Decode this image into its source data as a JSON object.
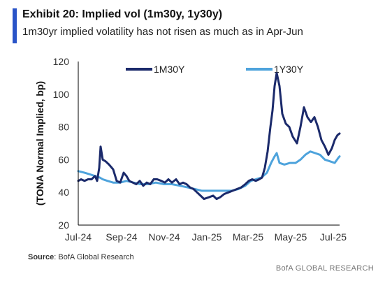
{
  "colors": {
    "accent": "#2a54c8",
    "series_1m30y": "#1b2a6b",
    "series_1y30y": "#4ea3dc",
    "axis": "#000000"
  },
  "header": {
    "title": "Exhibit 20: Implied vol (1m30y, 1y30y)",
    "subtitle": "1m30yr implied volatility has not risen as much as in Apr-Jun"
  },
  "source": {
    "label": "Source",
    "text": ": BofA Global Research"
  },
  "footer": {
    "brand": "BofA GLOBAL RESEARCH"
  },
  "chart_data": {
    "type": "line",
    "title": "Exhibit 20: Implied vol (1m30y, 1y30y)",
    "ylabel": "(TONA Normal Implied, bp)",
    "xlabel": "",
    "ylim": [
      20,
      120
    ],
    "yticks": [
      20,
      40,
      60,
      80,
      100,
      120
    ],
    "xlim": [
      "2024-07-01",
      "2025-07-10"
    ],
    "xticks": [
      {
        "date": "2024-07-01",
        "label": "Jul-24"
      },
      {
        "date": "2024-09-01",
        "label": "Sep-24"
      },
      {
        "date": "2024-11-01",
        "label": "Nov-24"
      },
      {
        "date": "2025-01-01",
        "label": "Jan-25"
      },
      {
        "date": "2025-03-01",
        "label": "Mar-25"
      },
      {
        "date": "2025-05-01",
        "label": "May-25"
      },
      {
        "date": "2025-07-01",
        "label": "Jul-25"
      }
    ],
    "legend_position": "top",
    "grid": false,
    "series": [
      {
        "name": "1M30Y",
        "points": [
          [
            "2024-07-01",
            47
          ],
          [
            "2024-07-05",
            48
          ],
          [
            "2024-07-10",
            47
          ],
          [
            "2024-07-15",
            48
          ],
          [
            "2024-07-20",
            48
          ],
          [
            "2024-07-25",
            50
          ],
          [
            "2024-07-28",
            47
          ],
          [
            "2024-07-31",
            55
          ],
          [
            "2024-08-02",
            68
          ],
          [
            "2024-08-05",
            60
          ],
          [
            "2024-08-09",
            59
          ],
          [
            "2024-08-14",
            57
          ],
          [
            "2024-08-20",
            54
          ],
          [
            "2024-08-25",
            47
          ],
          [
            "2024-08-30",
            46
          ],
          [
            "2024-09-04",
            52
          ],
          [
            "2024-09-08",
            50
          ],
          [
            "2024-09-12",
            47
          ],
          [
            "2024-09-17",
            46
          ],
          [
            "2024-09-22",
            45
          ],
          [
            "2024-09-27",
            47
          ],
          [
            "2024-10-02",
            44
          ],
          [
            "2024-10-07",
            46
          ],
          [
            "2024-10-12",
            45
          ],
          [
            "2024-10-17",
            48
          ],
          [
            "2024-10-22",
            48
          ],
          [
            "2024-10-28",
            47
          ],
          [
            "2024-11-02",
            46
          ],
          [
            "2024-11-07",
            48
          ],
          [
            "2024-11-12",
            46
          ],
          [
            "2024-11-18",
            48
          ],
          [
            "2024-11-23",
            45
          ],
          [
            "2024-11-28",
            46
          ],
          [
            "2024-12-03",
            45
          ],
          [
            "2024-12-08",
            43
          ],
          [
            "2024-12-13",
            42
          ],
          [
            "2024-12-18",
            40
          ],
          [
            "2024-12-23",
            38
          ],
          [
            "2024-12-28",
            36
          ],
          [
            "2025-01-04",
            37
          ],
          [
            "2025-01-10",
            38
          ],
          [
            "2025-01-15",
            36
          ],
          [
            "2025-01-20",
            37
          ],
          [
            "2025-01-26",
            39
          ],
          [
            "2025-02-01",
            40
          ],
          [
            "2025-02-07",
            41
          ],
          [
            "2025-02-13",
            42
          ],
          [
            "2025-02-19",
            43
          ],
          [
            "2025-02-25",
            45
          ],
          [
            "2025-03-02",
            47
          ],
          [
            "2025-03-07",
            48
          ],
          [
            "2025-03-12",
            47
          ],
          [
            "2025-03-17",
            48
          ],
          [
            "2025-03-21",
            49
          ],
          [
            "2025-03-25",
            55
          ],
          [
            "2025-03-29",
            65
          ],
          [
            "2025-04-02",
            80
          ],
          [
            "2025-04-05",
            90
          ],
          [
            "2025-04-08",
            105
          ],
          [
            "2025-04-11",
            113
          ],
          [
            "2025-04-15",
            105
          ],
          [
            "2025-04-19",
            88
          ],
          [
            "2025-04-24",
            82
          ],
          [
            "2025-04-29",
            80
          ],
          [
            "2025-05-04",
            74
          ],
          [
            "2025-05-10",
            70
          ],
          [
            "2025-05-15",
            80
          ],
          [
            "2025-05-20",
            92
          ],
          [
            "2025-05-25",
            86
          ],
          [
            "2025-05-30",
            83
          ],
          [
            "2025-06-04",
            86
          ],
          [
            "2025-06-09",
            80
          ],
          [
            "2025-06-14",
            72
          ],
          [
            "2025-06-19",
            68
          ],
          [
            "2025-06-24",
            63
          ],
          [
            "2025-06-29",
            67
          ],
          [
            "2025-07-03",
            72
          ],
          [
            "2025-07-07",
            75
          ],
          [
            "2025-07-10",
            76
          ]
        ]
      },
      {
        "name": "1Y30Y",
        "points": [
          [
            "2024-07-01",
            53
          ],
          [
            "2024-07-10",
            52
          ],
          [
            "2024-07-18",
            51
          ],
          [
            "2024-07-25",
            50
          ],
          [
            "2024-08-01",
            49
          ],
          [
            "2024-08-05",
            48
          ],
          [
            "2024-08-12",
            47
          ],
          [
            "2024-08-20",
            46
          ],
          [
            "2024-08-30",
            46
          ],
          [
            "2024-09-08",
            47
          ],
          [
            "2024-09-18",
            46
          ],
          [
            "2024-09-28",
            45
          ],
          [
            "2024-10-08",
            45
          ],
          [
            "2024-10-20",
            46
          ],
          [
            "2024-11-01",
            45
          ],
          [
            "2024-11-12",
            45
          ],
          [
            "2024-11-24",
            44
          ],
          [
            "2024-12-05",
            43
          ],
          [
            "2024-12-15",
            42
          ],
          [
            "2024-12-25",
            41
          ],
          [
            "2025-01-05",
            41
          ],
          [
            "2025-01-15",
            41
          ],
          [
            "2025-01-25",
            41
          ],
          [
            "2025-02-05",
            41
          ],
          [
            "2025-02-15",
            42
          ],
          [
            "2025-02-25",
            44
          ],
          [
            "2025-03-05",
            47
          ],
          [
            "2025-03-12",
            48
          ],
          [
            "2025-03-20",
            49
          ],
          [
            "2025-03-28",
            52
          ],
          [
            "2025-04-03",
            58
          ],
          [
            "2025-04-08",
            62
          ],
          [
            "2025-04-11",
            64
          ],
          [
            "2025-04-15",
            58
          ],
          [
            "2025-04-22",
            57
          ],
          [
            "2025-04-30",
            58
          ],
          [
            "2025-05-08",
            58
          ],
          [
            "2025-05-15",
            60
          ],
          [
            "2025-05-22",
            63
          ],
          [
            "2025-05-29",
            65
          ],
          [
            "2025-06-05",
            64
          ],
          [
            "2025-06-12",
            63
          ],
          [
            "2025-06-19",
            60
          ],
          [
            "2025-06-26",
            59
          ],
          [
            "2025-07-03",
            58
          ],
          [
            "2025-07-08",
            61
          ],
          [
            "2025-07-10",
            62
          ]
        ]
      }
    ]
  }
}
